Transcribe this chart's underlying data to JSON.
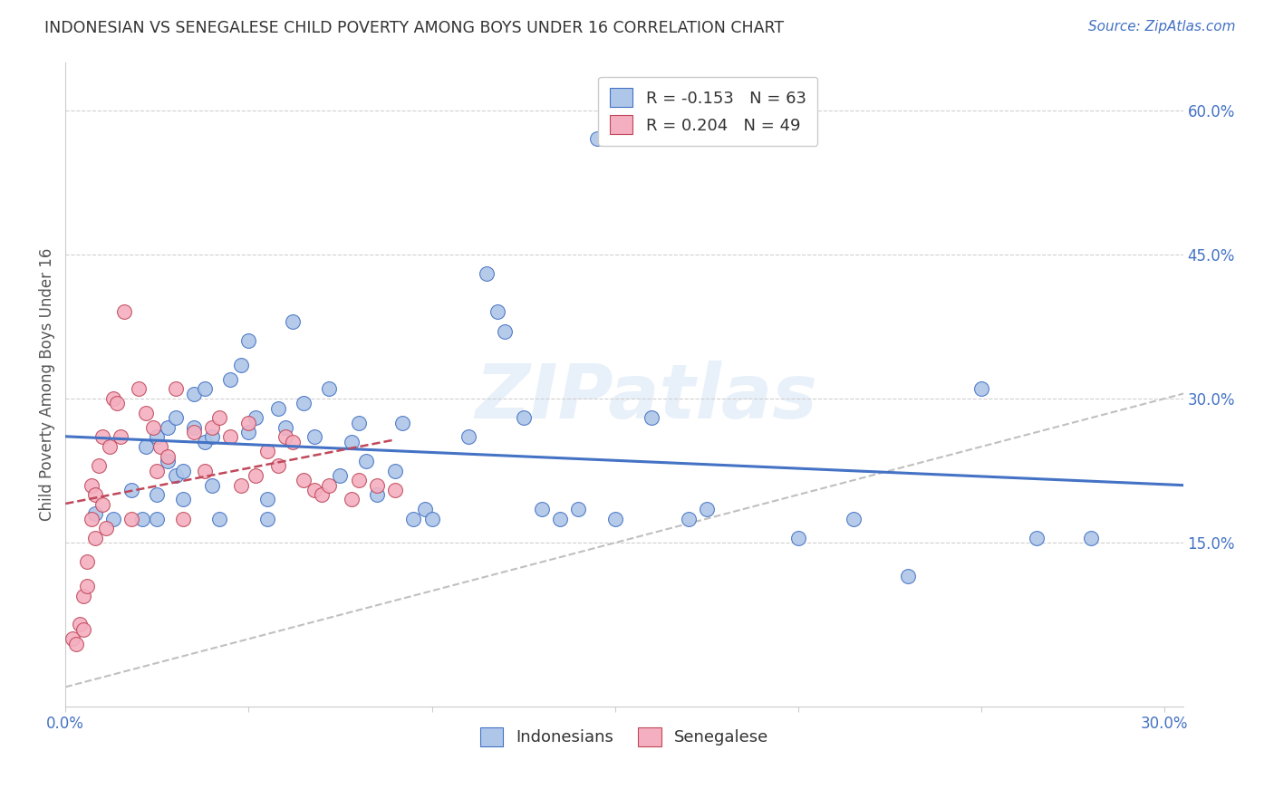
{
  "title": "INDONESIAN VS SENEGALESE CHILD POVERTY AMONG BOYS UNDER 16 CORRELATION CHART",
  "source": "Source: ZipAtlas.com",
  "ylabel": "Child Poverty Among Boys Under 16",
  "xlim": [
    0.0,
    0.305
  ],
  "ylim": [
    -0.02,
    0.65
  ],
  "xticks": [
    0.0,
    0.05,
    0.1,
    0.15,
    0.2,
    0.25,
    0.3
  ],
  "xtick_labels": [
    "0.0%",
    "",
    "",
    "",
    "",
    "",
    "30.0%"
  ],
  "yticks_right": [
    0.15,
    0.3,
    0.45,
    0.6
  ],
  "ytick_labels_right": [
    "15.0%",
    "30.0%",
    "45.0%",
    "60.0%"
  ],
  "R_indonesian": -0.153,
  "N_indonesian": 63,
  "R_senegalese": 0.204,
  "N_senegalese": 49,
  "indonesian_color": "#aec6e8",
  "senegalese_color": "#f4afc0",
  "trend_indonesian_color": "#4472c4",
  "trend_senegalese_color": "#c0485a",
  "watermark": "ZIPatlas",
  "indonesian_x": [
    0.008,
    0.013,
    0.018,
    0.021,
    0.022,
    0.025,
    0.025,
    0.025,
    0.028,
    0.028,
    0.03,
    0.03,
    0.032,
    0.032,
    0.035,
    0.035,
    0.038,
    0.038,
    0.04,
    0.04,
    0.042,
    0.045,
    0.048,
    0.05,
    0.05,
    0.052,
    0.055,
    0.055,
    0.058,
    0.06,
    0.062,
    0.065,
    0.068,
    0.072,
    0.075,
    0.078,
    0.08,
    0.082,
    0.085,
    0.09,
    0.092,
    0.095,
    0.098,
    0.1,
    0.11,
    0.115,
    0.118,
    0.12,
    0.125,
    0.13,
    0.135,
    0.14,
    0.145,
    0.15,
    0.16,
    0.17,
    0.175,
    0.2,
    0.215,
    0.23,
    0.25,
    0.265,
    0.28
  ],
  "indonesian_y": [
    0.18,
    0.175,
    0.205,
    0.175,
    0.25,
    0.26,
    0.2,
    0.175,
    0.27,
    0.235,
    0.28,
    0.22,
    0.225,
    0.195,
    0.305,
    0.27,
    0.31,
    0.255,
    0.26,
    0.21,
    0.175,
    0.32,
    0.335,
    0.36,
    0.265,
    0.28,
    0.195,
    0.175,
    0.29,
    0.27,
    0.38,
    0.295,
    0.26,
    0.31,
    0.22,
    0.255,
    0.275,
    0.235,
    0.2,
    0.225,
    0.275,
    0.175,
    0.185,
    0.175,
    0.26,
    0.43,
    0.39,
    0.37,
    0.28,
    0.185,
    0.175,
    0.185,
    0.57,
    0.175,
    0.28,
    0.175,
    0.185,
    0.155,
    0.175,
    0.115,
    0.31,
    0.155,
    0.155
  ],
  "senegalese_x": [
    0.002,
    0.003,
    0.004,
    0.005,
    0.005,
    0.006,
    0.006,
    0.007,
    0.007,
    0.008,
    0.008,
    0.009,
    0.01,
    0.01,
    0.011,
    0.012,
    0.013,
    0.014,
    0.015,
    0.016,
    0.018,
    0.02,
    0.022,
    0.024,
    0.025,
    0.026,
    0.028,
    0.03,
    0.032,
    0.035,
    0.038,
    0.04,
    0.042,
    0.045,
    0.048,
    0.05,
    0.052,
    0.055,
    0.058,
    0.06,
    0.062,
    0.065,
    0.068,
    0.07,
    0.072,
    0.078,
    0.08,
    0.085,
    0.09
  ],
  "senegalese_y": [
    0.05,
    0.045,
    0.065,
    0.06,
    0.095,
    0.105,
    0.13,
    0.175,
    0.21,
    0.155,
    0.2,
    0.23,
    0.19,
    0.26,
    0.165,
    0.25,
    0.3,
    0.295,
    0.26,
    0.39,
    0.175,
    0.31,
    0.285,
    0.27,
    0.225,
    0.25,
    0.24,
    0.31,
    0.175,
    0.265,
    0.225,
    0.27,
    0.28,
    0.26,
    0.21,
    0.275,
    0.22,
    0.245,
    0.23,
    0.26,
    0.255,
    0.215,
    0.205,
    0.2,
    0.21,
    0.195,
    0.215,
    0.21,
    0.205
  ]
}
